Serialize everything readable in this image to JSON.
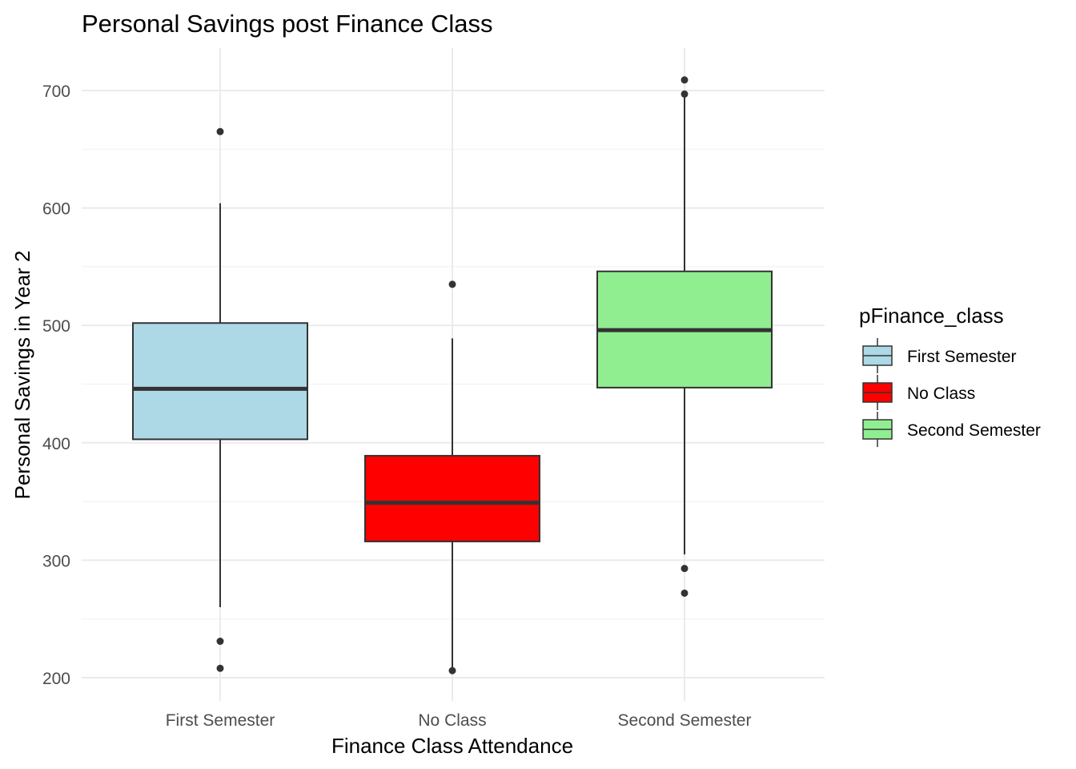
{
  "chart_data": {
    "type": "boxplot",
    "title": "Personal Savings post Finance Class",
    "xlabel": "Finance Class Attendance",
    "ylabel": "Personal Savings in Year 2",
    "categories": [
      "First Semester",
      "No Class",
      "Second Semester"
    ],
    "yticks": [
      200,
      300,
      400,
      500,
      600,
      700
    ],
    "ylim": [
      175,
      735
    ],
    "grid": true,
    "legend": {
      "title": "pFinance_class",
      "position": "right",
      "entries": [
        "First Semester",
        "No Class",
        "Second Semester"
      ]
    },
    "series": [
      {
        "name": "First Semester",
        "color": "#add8e6",
        "whisker_low": 260,
        "q1": 403,
        "median": 446,
        "q3": 502,
        "whisker_high": 604,
        "outliers": [
          665,
          231,
          208
        ]
      },
      {
        "name": "No Class",
        "color": "#ff0000",
        "whisker_low": 206,
        "q1": 316,
        "median": 349,
        "q3": 389,
        "whisker_high": 489,
        "outliers": [
          535,
          206
        ]
      },
      {
        "name": "Second Semester",
        "color": "#90ee90",
        "whisker_low": 305,
        "q1": 447,
        "median": 496,
        "q3": 546,
        "whisker_high": 697,
        "outliers": [
          709,
          697,
          293,
          272
        ]
      }
    ]
  }
}
